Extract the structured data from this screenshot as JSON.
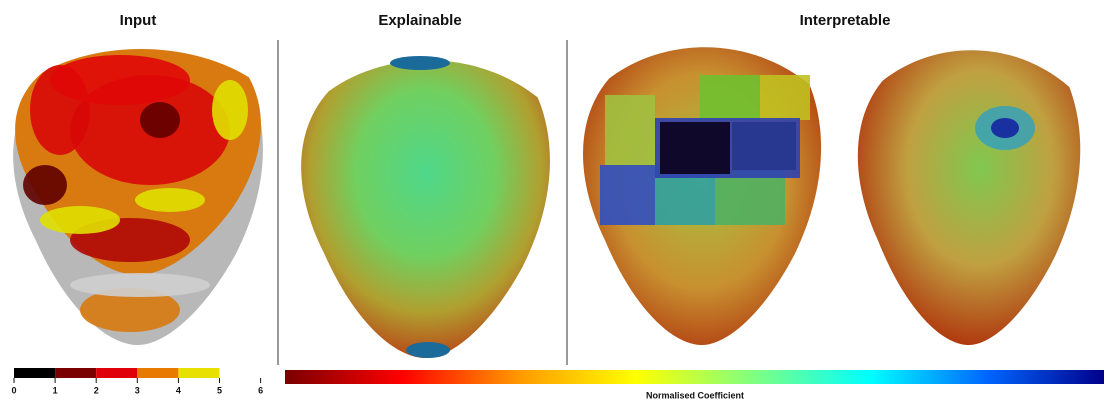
{
  "panels": {
    "input": "Input",
    "explainable": "Explainable",
    "interpretable": "Interpretable"
  },
  "discrete_colorbar": {
    "ticks": [
      0,
      1,
      2,
      3,
      4,
      5,
      6
    ],
    "colors": [
      "#000000",
      "#7a0000",
      "#e0000a",
      "#e87a00",
      "#e8e000"
    ]
  },
  "continuous_colorbar": {
    "label": "Normalised Coefficient",
    "colors": [
      "#7a0000",
      "#ff0000",
      "#ff9900",
      "#ffff00",
      "#80ff80",
      "#00ffff",
      "#0066ff",
      "#00008a"
    ]
  }
}
